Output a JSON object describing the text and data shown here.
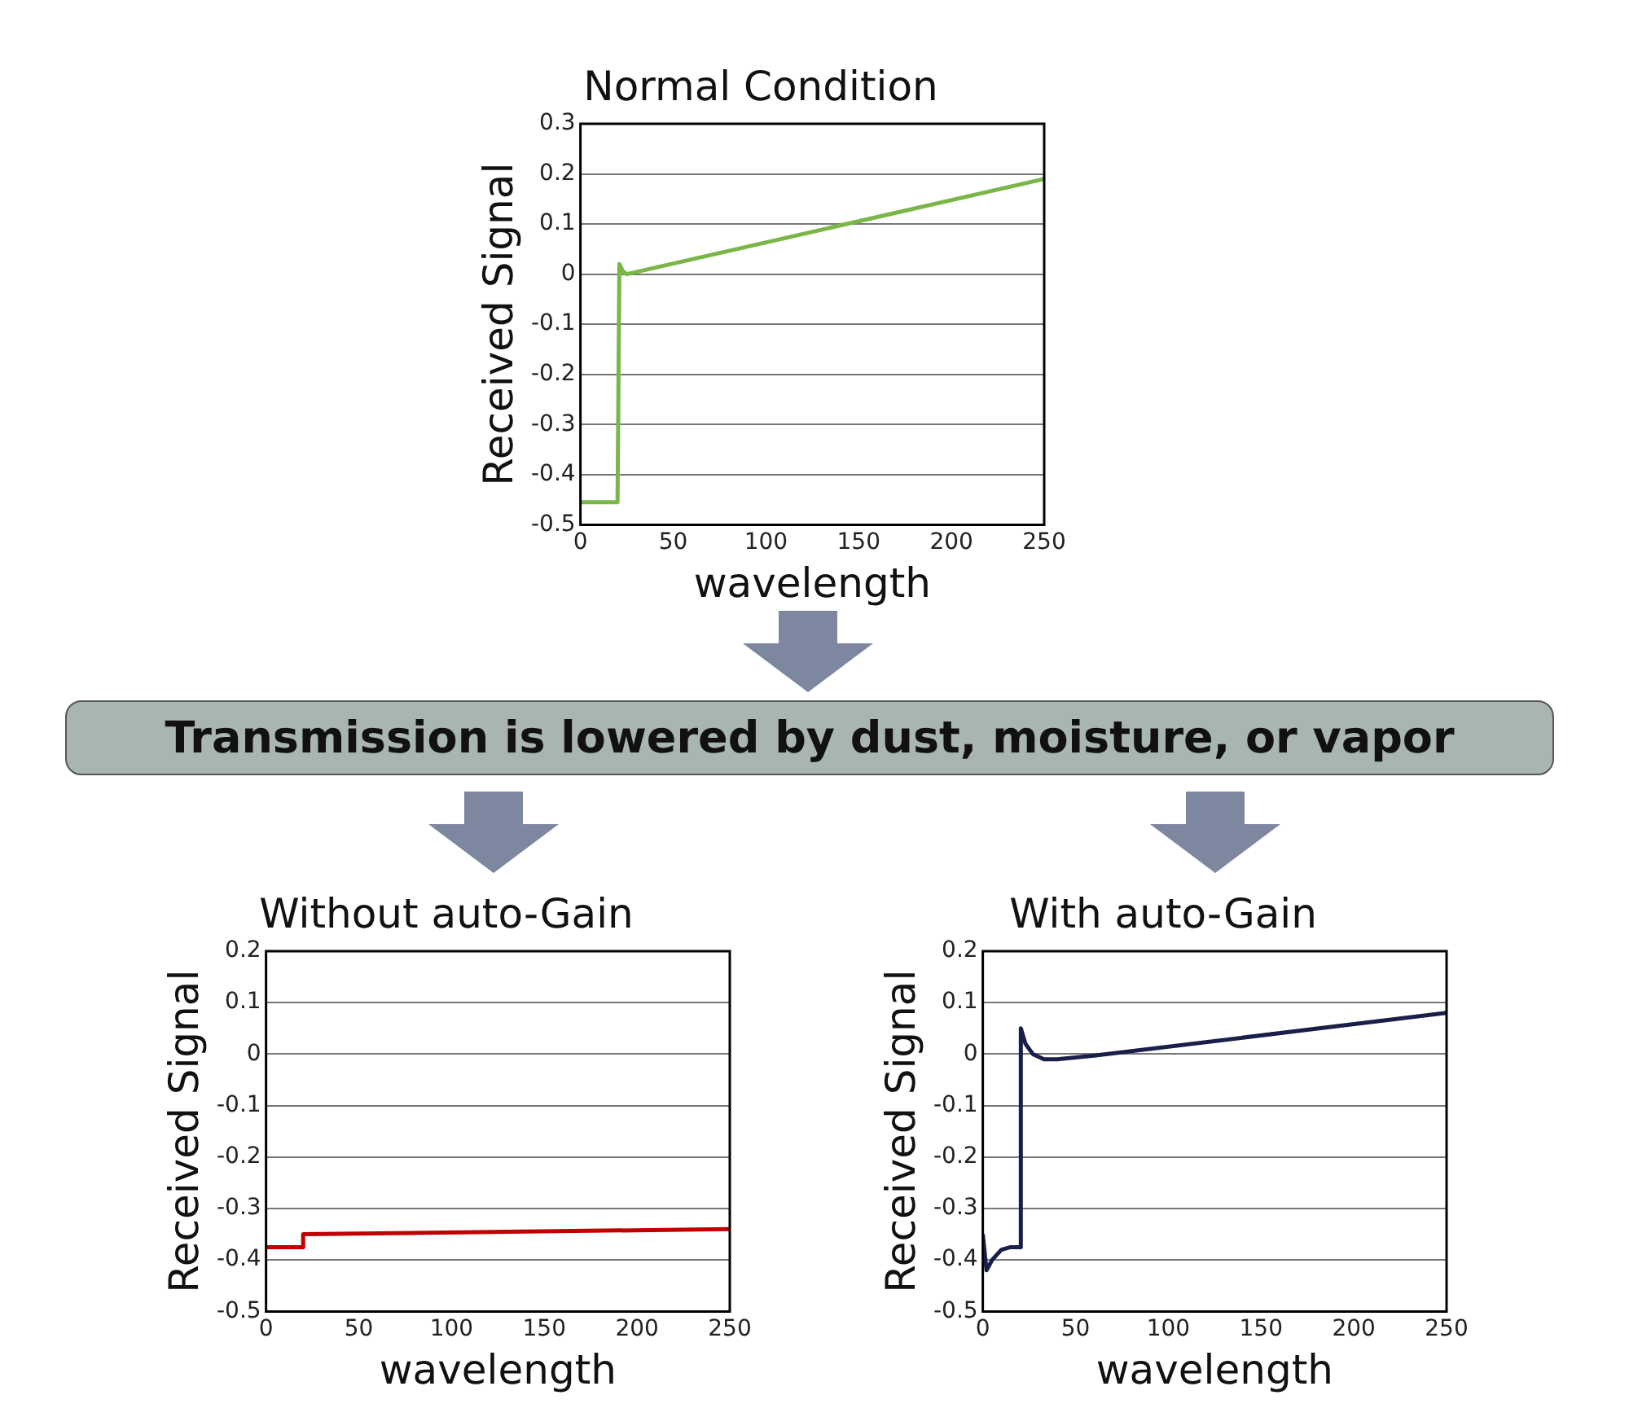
{
  "chart_data": [
    {
      "type": "line",
      "title": "Normal Condition",
      "xlabel": "wavelength",
      "ylabel": "Received Signal",
      "xlim": [
        0,
        250
      ],
      "ylim": [
        -0.5,
        0.3
      ],
      "xticks": [
        0,
        50,
        100,
        150,
        200,
        250
      ],
      "yticks": [
        -0.5,
        -0.4,
        -0.3,
        -0.2,
        -0.1,
        0,
        0.1,
        0.2,
        0.3
      ],
      "grid": "y",
      "series": [
        {
          "color": "#7ab648",
          "x": [
            0,
            20,
            21,
            23,
            25,
            250
          ],
          "values": [
            -0.455,
            -0.455,
            0.02,
            0.005,
            0,
            0.19
          ]
        }
      ]
    },
    {
      "type": "other",
      "title": "Transmission is lowered by dust, moisture, or vapor"
    },
    {
      "type": "line",
      "title": "Without auto-Gain",
      "xlabel": "wavelength",
      "ylabel": "Received Signal",
      "xlim": [
        0,
        250
      ],
      "ylim": [
        -0.5,
        0.2
      ],
      "xticks": [
        0,
        50,
        100,
        150,
        200,
        250
      ],
      "yticks": [
        -0.5,
        -0.4,
        -0.3,
        -0.2,
        -0.1,
        0,
        0.1,
        0.2
      ],
      "grid": "y",
      "series": [
        {
          "color": "#c00000",
          "x": [
            0,
            20,
            20,
            250
          ],
          "values": [
            -0.375,
            -0.375,
            -0.35,
            -0.34
          ]
        }
      ]
    },
    {
      "type": "line",
      "title": "With auto-Gain",
      "xlabel": "wavelength",
      "ylabel": "Received Signal",
      "xlim": [
        0,
        250
      ],
      "ylim": [
        -0.5,
        0.2
      ],
      "xticks": [
        0,
        50,
        100,
        150,
        200,
        250
      ],
      "yticks": [
        -0.5,
        -0.4,
        -0.3,
        -0.2,
        -0.1,
        0,
        0.1,
        0.2
      ],
      "grid": "y",
      "series": [
        {
          "color": "#1a1f4a",
          "x": [
            0,
            2,
            5,
            10,
            15,
            20,
            20.5,
            23,
            27,
            33,
            40,
            60,
            250
          ],
          "values": [
            -0.35,
            -0.42,
            -0.4,
            -0.38,
            -0.375,
            -0.375,
            0.05,
            0.02,
            0,
            -0.01,
            -0.01,
            -0.003,
            0.08
          ]
        }
      ]
    }
  ]
}
